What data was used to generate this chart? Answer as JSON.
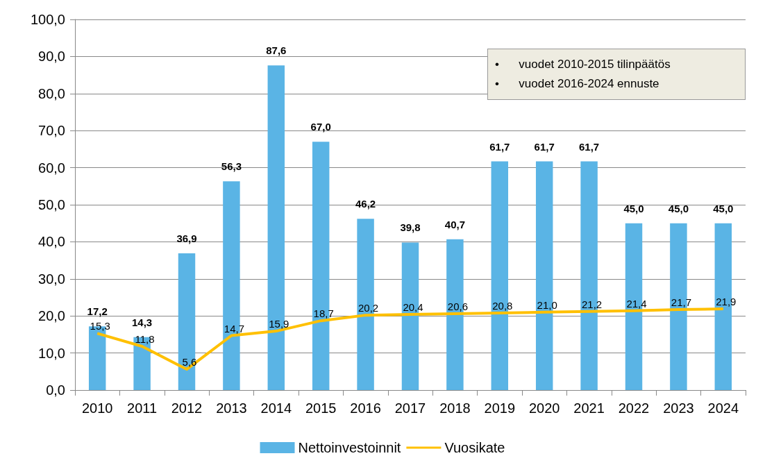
{
  "chart_data": {
    "type": "bar",
    "categories": [
      "2010",
      "2011",
      "2012",
      "2013",
      "2014",
      "2015",
      "2016",
      "2017",
      "2018",
      "2019",
      "2020",
      "2021",
      "2022",
      "2023",
      "2024"
    ],
    "series": [
      {
        "name": "Nettoinvestoinnit",
        "color": "#5ab4e5",
        "values": [
          17.2,
          14.3,
          36.9,
          56.3,
          87.6,
          67.0,
          46.2,
          39.8,
          40.7,
          61.7,
          61.7,
          61.7,
          45.0,
          45.0,
          45.0
        ],
        "value_labels": [
          "17,2",
          "14,3",
          "36,9",
          "56,3",
          "87,6",
          "67,0",
          "46,2",
          "39,8",
          "40,7",
          "61,7",
          "61,7",
          "61,7",
          "45,0",
          "45,0",
          "45,0"
        ]
      },
      {
        "name": "Vuosikate",
        "type": "line",
        "color": "#ffc000",
        "values": [
          15.3,
          11.8,
          5.6,
          14.7,
          15.9,
          18.7,
          20.2,
          20.4,
          20.6,
          20.8,
          21.0,
          21.2,
          21.4,
          21.7,
          21.9
        ],
        "value_labels": [
          "15,3",
          "11,8",
          "5,6",
          "14,7",
          "15,9",
          "18,7",
          "20,2",
          "20,4",
          "20,6",
          "20,8",
          "21,0",
          "21,2",
          "21,4",
          "21,7",
          "21,9"
        ]
      }
    ],
    "ylim": [
      0,
      100
    ],
    "yticks": [
      {
        "value": 0,
        "label": "0,0"
      },
      {
        "value": 10,
        "label": "10,0"
      },
      {
        "value": 20,
        "label": "20,0"
      },
      {
        "value": 30,
        "label": "30,0"
      },
      {
        "value": 40,
        "label": "40,0"
      },
      {
        "value": 50,
        "label": "50,0"
      },
      {
        "value": 60,
        "label": "60,0"
      },
      {
        "value": 70,
        "label": "70,0"
      },
      {
        "value": 80,
        "label": "80,0"
      },
      {
        "value": 90,
        "label": "90,0"
      },
      {
        "value": 100,
        "label": "100,0"
      }
    ],
    "grid": "y",
    "legend": "bottom",
    "marker": "none",
    "annotations": [
      "•      vuodet 2010-2015 tilinpäätös",
      "•      vuodet 2016-2024 ennuste"
    ]
  }
}
